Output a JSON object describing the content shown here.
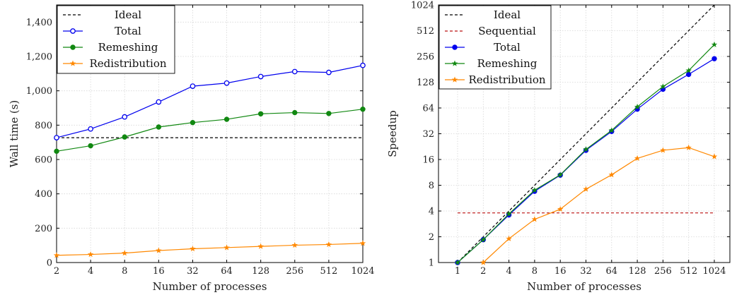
{
  "chart_data": [
    {
      "type": "line",
      "xlabel": "Number of processes",
      "ylabel": "Wall time (s)",
      "x_ticks": [
        "2",
        "4",
        "8",
        "16",
        "32",
        "64",
        "128",
        "256",
        "512",
        "1024"
      ],
      "y_ticks": [
        "0",
        "200",
        "400",
        "600",
        "800",
        "1,000",
        "1,200",
        "1,400"
      ],
      "ylim": [
        0,
        1500
      ],
      "xscale": "log2",
      "grid": true,
      "legend_position": "top-left",
      "x": [
        2,
        4,
        8,
        16,
        32,
        64,
        128,
        256,
        512,
        1024
      ],
      "series": [
        {
          "name": "Ideal",
          "style": "dashed",
          "color": "#000000",
          "marker": "none",
          "values": [
            727,
            727,
            727,
            727,
            727,
            727,
            727,
            727,
            727,
            727
          ]
        },
        {
          "name": "Total",
          "style": "solid",
          "color": "#0000ee",
          "marker": "open-circle",
          "values": [
            727,
            778,
            848,
            935,
            1027,
            1045,
            1083,
            1112,
            1107,
            1148
          ]
        },
        {
          "name": "Remeshing",
          "style": "solid",
          "color": "#118811",
          "marker": "filled-circle",
          "values": [
            648,
            680,
            731,
            789,
            815,
            834,
            866,
            873,
            868,
            893
          ]
        },
        {
          "name": "Redistribution",
          "style": "solid",
          "color": "#ff8800",
          "marker": "star",
          "values": [
            42,
            47,
            55,
            70,
            80,
            87,
            94,
            101,
            105,
            112
          ]
        }
      ]
    },
    {
      "type": "line",
      "xlabel": "Number of processes",
      "ylabel": "Speedup",
      "x_ticks": [
        "1",
        "2",
        "4",
        "8",
        "16",
        "32",
        "64",
        "128",
        "256",
        "512",
        "1024"
      ],
      "y_ticks": [
        "1",
        "2",
        "4",
        "8",
        "16",
        "32",
        "64",
        "128",
        "256",
        "512",
        "1024"
      ],
      "xscale": "log2",
      "yscale": "log2",
      "ylim": [
        1,
        1024
      ],
      "grid": true,
      "legend_position": "top-left",
      "series": [
        {
          "name": "Ideal",
          "style": "dashed",
          "color": "#000000",
          "marker": "none",
          "x": [
            1,
            1024
          ],
          "values": [
            1,
            1024
          ]
        },
        {
          "name": "Sequential",
          "style": "dashed",
          "color": "#bb1111",
          "marker": "none",
          "x": [
            1,
            1024
          ],
          "values": [
            3.8,
            3.8
          ]
        },
        {
          "name": "Total",
          "style": "solid",
          "color": "#0000ee",
          "marker": "filled-circle",
          "x": [
            1,
            2,
            4,
            8,
            16,
            32,
            64,
            128,
            256,
            512,
            1024
          ],
          "values": [
            1,
            1.85,
            3.6,
            6.8,
            10.5,
            20.5,
            34,
            62,
            106,
            158,
            241
          ]
        },
        {
          "name": "Remeshing",
          "style": "solid",
          "color": "#118811",
          "marker": "star",
          "x": [
            1,
            2,
            4,
            8,
            16,
            32,
            64,
            128,
            256,
            512,
            1024
          ],
          "values": [
            1,
            1.85,
            3.7,
            7.0,
            10.6,
            21,
            35,
            66,
            114,
            175,
            352
          ]
        },
        {
          "name": "Redistribution",
          "style": "solid",
          "color": "#ff8800",
          "marker": "star",
          "x": [
            2,
            4,
            8,
            16,
            32,
            64,
            128,
            256,
            512,
            1024
          ],
          "values": [
            1,
            1.9,
            3.2,
            4.2,
            7.2,
            10.6,
            16.5,
            20.5,
            22,
            17.3
          ]
        }
      ]
    }
  ]
}
